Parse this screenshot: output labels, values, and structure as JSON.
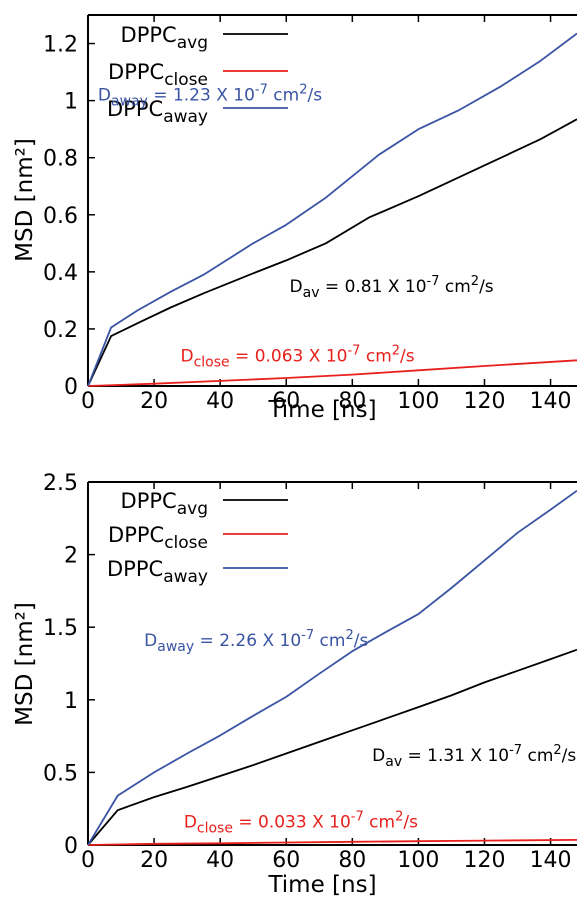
{
  "chart_data": [
    {
      "type": "line",
      "xlabel": "Time [ns]",
      "ylabel": "MSD [nm²]",
      "xlim": [
        0,
        148
      ],
      "ylim": [
        0,
        1.3
      ],
      "x_ticks": [
        "0",
        "20",
        "40",
        "60",
        "80",
        "100",
        "120",
        "140"
      ],
      "x_tick_values": [
        0,
        20,
        40,
        60,
        80,
        100,
        120,
        140
      ],
      "y_ticks": [
        "0",
        "0.2",
        "0.4",
        "0.6",
        "0.8",
        "1",
        "1.2"
      ],
      "y_tick_values": [
        0,
        0.2,
        0.4,
        0.6,
        0.8,
        1.0,
        1.2
      ],
      "legend_position": "top-right",
      "series": [
        {
          "name": "DPPC",
          "sub": "avg",
          "color": "#000000",
          "x": [
            0,
            7,
            15,
            25,
            35,
            50,
            60,
            72,
            85,
            100,
            112,
            125,
            137,
            148
          ],
          "y": [
            0,
            0.175,
            0.22,
            0.275,
            0.325,
            0.395,
            0.44,
            0.5,
            0.59,
            0.665,
            0.73,
            0.8,
            0.865,
            0.935
          ]
        },
        {
          "name": "DPPC",
          "sub": "close",
          "color": "#e8201c",
          "x": [
            0,
            20,
            40,
            60,
            80,
            100,
            120,
            148
          ],
          "y": [
            0,
            0.008,
            0.018,
            0.028,
            0.04,
            0.055,
            0.07,
            0.09
          ]
        },
        {
          "name": "DPPC",
          "sub": "away",
          "color": "#3a54a4",
          "x": [
            0,
            7,
            15,
            25,
            35,
            50,
            60,
            72,
            88,
            100,
            112,
            125,
            137,
            148
          ],
          "y": [
            0,
            0.205,
            0.265,
            0.33,
            0.39,
            0.5,
            0.565,
            0.66,
            0.81,
            0.9,
            0.965,
            1.05,
            1.14,
            1.235
          ]
        }
      ],
      "annotations": [
        {
          "main": "D",
          "sub": "away",
          "pre": " = 1.23 X 10",
          "sup1": "-7",
          "mid": " cm",
          "sup2": "2",
          "post": "/s",
          "color": "#3a54a4",
          "at": [
            3,
            1.0
          ]
        },
        {
          "main": "D",
          "sub": "av",
          "pre": " = 0.81 X 10",
          "sup1": "-7",
          "mid": " cm",
          "sup2": "2",
          "post": "/s",
          "color": "#000000",
          "at": [
            61,
            0.33
          ]
        },
        {
          "main": "D",
          "sub": "close",
          "pre": " = 0.063 X 10",
          "sup1": "-7",
          "mid": " cm",
          "sup2": "2",
          "post": "/s",
          "color": "#e8201c",
          "at": [
            28,
            0.085
          ]
        }
      ]
    },
    {
      "type": "line",
      "xlabel": "Time [ns]",
      "ylabel": "MSD [nm²]",
      "xlim": [
        0,
        148
      ],
      "ylim": [
        0,
        2.5
      ],
      "x_ticks": [
        "0",
        "20",
        "40",
        "60",
        "80",
        "100",
        "120",
        "140"
      ],
      "x_tick_values": [
        0,
        20,
        40,
        60,
        80,
        100,
        120,
        140
      ],
      "y_ticks": [
        "0",
        "0.5",
        "1",
        "1.5",
        "2",
        "2.5"
      ],
      "y_tick_values": [
        0,
        0.5,
        1.0,
        1.5,
        2.0,
        2.5
      ],
      "legend_position": "top-right",
      "series": [
        {
          "name": "DPPC",
          "sub": "avg",
          "color": "#000000",
          "x": [
            0,
            9,
            20,
            30,
            40,
            50,
            60,
            70,
            80,
            90,
            100,
            110,
            120,
            130,
            140,
            148
          ],
          "y": [
            0,
            0.24,
            0.33,
            0.4,
            0.475,
            0.55,
            0.63,
            0.71,
            0.79,
            0.87,
            0.95,
            1.03,
            1.12,
            1.2,
            1.28,
            1.345
          ]
        },
        {
          "name": "DPPC",
          "sub": "close",
          "color": "#e8201c",
          "x": [
            0,
            20,
            40,
            60,
            80,
            100,
            120,
            148
          ],
          "y": [
            0,
            0.008,
            0.012,
            0.017,
            0.022,
            0.026,
            0.03,
            0.035
          ]
        },
        {
          "name": "DPPC",
          "sub": "away",
          "color": "#3a54a4",
          "x": [
            0,
            9,
            20,
            30,
            40,
            50,
            60,
            70,
            80,
            90,
            100,
            110,
            120,
            130,
            140,
            148
          ],
          "y": [
            0,
            0.34,
            0.5,
            0.63,
            0.755,
            0.89,
            1.02,
            1.18,
            1.335,
            1.465,
            1.59,
            1.77,
            1.96,
            2.15,
            2.31,
            2.44
          ]
        }
      ],
      "annotations": [
        {
          "main": "D",
          "sub": "away",
          "pre": " = 2.26 X 10",
          "sup1": "-7",
          "mid": " cm",
          "sup2": "2",
          "post": "/s",
          "color": "#3a54a4",
          "at": [
            17,
            1.37
          ]
        },
        {
          "main": "D",
          "sub": "av",
          "pre": " = 1.31 X 10",
          "sup1": "-7",
          "mid": " cm",
          "sup2": "2",
          "post": "/s",
          "color": "#000000",
          "at": [
            86,
            0.58
          ]
        },
        {
          "main": "D",
          "sub": "close",
          "pre": " = 0.033 X 10",
          "sup1": "-7",
          "mid": " cm",
          "sup2": "2",
          "post": "/s",
          "color": "#e8201c",
          "at": [
            29,
            0.12
          ]
        }
      ]
    }
  ]
}
